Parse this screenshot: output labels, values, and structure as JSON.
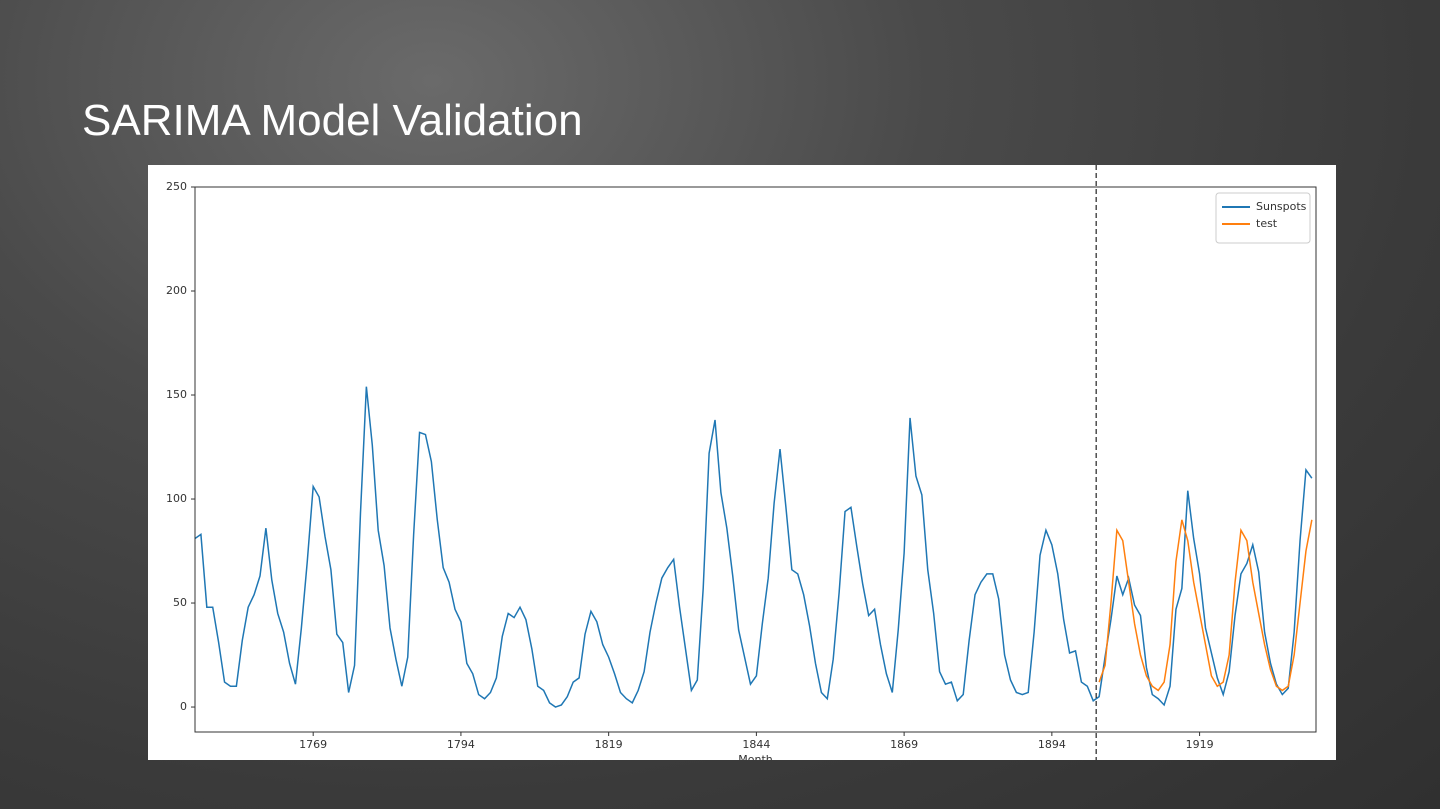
{
  "chart_data": {
    "type": "line",
    "title": "SARIMA Model Validation",
    "x_label": "Month",
    "xlim": [
      1749,
      1938.7
    ],
    "ylim": [
      -12,
      250
    ],
    "xticks": [
      1769,
      1794,
      1819,
      1844,
      1869,
      1894,
      1919
    ],
    "yticks": [
      0,
      50,
      100,
      150,
      200,
      250
    ],
    "vlines": [
      1901.5
    ],
    "legend": "upper right",
    "series": [
      {
        "name": "Sunspots",
        "color": "#1f77b4",
        "x": [
          1749,
          1750,
          1751,
          1752,
          1753,
          1754,
          1755,
          1756,
          1757,
          1758,
          1759,
          1760,
          1761,
          1762,
          1763,
          1764,
          1765,
          1766,
          1767,
          1768,
          1769,
          1770,
          1771,
          1772,
          1773,
          1774,
          1775,
          1776,
          1777,
          1778,
          1779,
          1780,
          1781,
          1782,
          1783,
          1784,
          1785,
          1786,
          1787,
          1788,
          1789,
          1790,
          1791,
          1792,
          1793,
          1794,
          1795,
          1796,
          1797,
          1798,
          1799,
          1800,
          1801,
          1802,
          1803,
          1804,
          1805,
          1806,
          1807,
          1808,
          1809,
          1810,
          1811,
          1812,
          1813,
          1814,
          1815,
          1816,
          1817,
          1818,
          1819,
          1820,
          1821,
          1822,
          1823,
          1824,
          1825,
          1826,
          1827,
          1828,
          1829,
          1830,
          1831,
          1832,
          1833,
          1834,
          1835,
          1836,
          1837,
          1838,
          1839,
          1840,
          1841,
          1842,
          1843,
          1844,
          1845,
          1846,
          1847,
          1848,
          1849,
          1850,
          1851,
          1852,
          1853,
          1854,
          1855,
          1856,
          1857,
          1858,
          1859,
          1860,
          1861,
          1862,
          1863,
          1864,
          1865,
          1866,
          1867,
          1868,
          1869,
          1870,
          1871,
          1872,
          1873,
          1874,
          1875,
          1876,
          1877,
          1878,
          1879,
          1880,
          1881,
          1882,
          1883,
          1884,
          1885,
          1886,
          1887,
          1888,
          1889,
          1890,
          1891,
          1892,
          1893,
          1894,
          1895,
          1896,
          1897,
          1898,
          1899,
          1900,
          1901,
          1902,
          1903,
          1904,
          1905,
          1906,
          1907,
          1908,
          1909,
          1910,
          1911,
          1912,
          1913,
          1914,
          1915,
          1916,
          1917,
          1918,
          1919,
          1920,
          1921,
          1922,
          1923,
          1924,
          1925,
          1926,
          1927,
          1928,
          1929,
          1930,
          1931,
          1932,
          1933,
          1934,
          1935,
          1936,
          1937,
          1938
        ],
        "values": [
          81,
          83,
          48,
          48,
          31,
          12,
          10,
          10,
          32,
          48,
          54,
          63,
          86,
          61,
          45,
          36,
          21,
          11,
          38,
          70,
          106,
          101,
          82,
          66,
          35,
          31,
          7,
          20,
          93,
          154,
          126,
          85,
          68,
          38,
          23,
          10,
          24,
          83,
          132,
          131,
          118,
          90,
          67,
          60,
          47,
          41,
          21,
          16,
          6,
          4,
          7,
          14,
          34,
          45,
          43,
          48,
          42,
          28,
          10,
          8,
          2,
          0,
          1,
          5,
          12,
          14,
          35,
          46,
          41,
          30,
          24,
          16,
          7,
          4,
          2,
          8,
          17,
          36,
          50,
          62,
          67,
          71,
          48,
          28,
          8,
          13,
          57,
          122,
          138,
          103,
          86,
          63,
          37,
          24,
          11,
          15,
          40,
          62,
          98,
          124,
          96,
          66,
          64,
          54,
          39,
          21,
          7,
          4,
          23,
          55,
          94,
          96,
          77,
          59,
          44,
          47,
          30,
          16,
          7,
          37,
          74,
          139,
          111,
          102,
          66,
          45,
          17,
          11,
          12,
          3,
          6,
          32,
          54,
          60,
          64,
          64,
          52,
          25,
          13,
          7,
          6,
          7,
          36,
          73,
          85,
          78,
          64,
          42,
          26,
          27,
          12,
          10,
          3,
          5,
          24,
          42,
          63,
          54,
          62,
          49,
          44,
          19,
          6,
          4,
          1,
          10,
          47,
          57,
          104,
          81,
          64,
          38,
          26,
          14,
          6,
          17,
          44,
          64,
          69,
          78,
          65,
          36,
          21,
          11,
          6,
          9,
          36,
          80,
          114,
          110
        ]
      },
      {
        "name": "test",
        "color": "#ff7f0e",
        "x": [
          1902,
          1903,
          1904,
          1905,
          1906,
          1907,
          1908,
          1909,
          1910,
          1911,
          1912,
          1913,
          1914,
          1915,
          1916,
          1917,
          1918,
          1919,
          1920,
          1921,
          1922,
          1923,
          1924,
          1925,
          1926,
          1927,
          1928,
          1929,
          1930,
          1931,
          1932,
          1933,
          1934,
          1935,
          1936,
          1937,
          1938
        ],
        "values": [
          12,
          20,
          50,
          85,
          80,
          60,
          40,
          25,
          15,
          10,
          8,
          12,
          30,
          70,
          90,
          80,
          60,
          45,
          30,
          15,
          10,
          12,
          25,
          60,
          85,
          80,
          60,
          45,
          30,
          18,
          10,
          8,
          10,
          25,
          50,
          75,
          90
        ]
      }
    ]
  }
}
